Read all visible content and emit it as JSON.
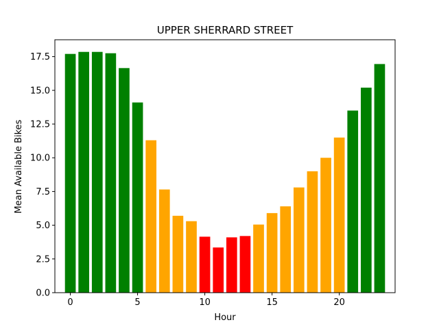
{
  "chart_data": {
    "type": "bar",
    "title": "UPPER SHERRARD STREET",
    "xlabel": "Hour",
    "ylabel": "Mean Available Bikes",
    "x": [
      0,
      1,
      2,
      3,
      4,
      5,
      6,
      7,
      8,
      9,
      10,
      11,
      12,
      13,
      14,
      15,
      16,
      17,
      18,
      19,
      20,
      21,
      22,
      23
    ],
    "values": [
      17.7,
      17.85,
      17.85,
      17.75,
      16.65,
      14.1,
      11.3,
      7.65,
      5.7,
      5.3,
      4.15,
      3.35,
      4.1,
      4.2,
      5.05,
      5.9,
      6.4,
      7.8,
      9.0,
      10.0,
      11.5,
      13.5,
      15.2,
      16.95
    ],
    "colors": [
      "#008000",
      "#008000",
      "#008000",
      "#008000",
      "#008000",
      "#008000",
      "#ffa500",
      "#ffa500",
      "#ffa500",
      "#ffa500",
      "#ff0000",
      "#ff0000",
      "#ff0000",
      "#ff0000",
      "#ffa500",
      "#ffa500",
      "#ffa500",
      "#ffa500",
      "#ffa500",
      "#ffa500",
      "#ffa500",
      "#008000",
      "#008000",
      "#008000"
    ],
    "xlim": [
      -1.15,
      24.15
    ],
    "ylim": [
      0,
      18.75
    ],
    "xticks": [
      0,
      5,
      10,
      15,
      20
    ],
    "xtick_labels": [
      "0",
      "5",
      "10",
      "15",
      "20"
    ],
    "yticks": [
      0,
      2.5,
      5,
      7.5,
      10,
      12.5,
      15,
      17.5
    ],
    "ytick_labels": [
      "0.0",
      "2.5",
      "5.0",
      "7.5",
      "10.0",
      "12.5",
      "15.0",
      "17.5"
    ],
    "grid": false,
    "legend": "none"
  }
}
